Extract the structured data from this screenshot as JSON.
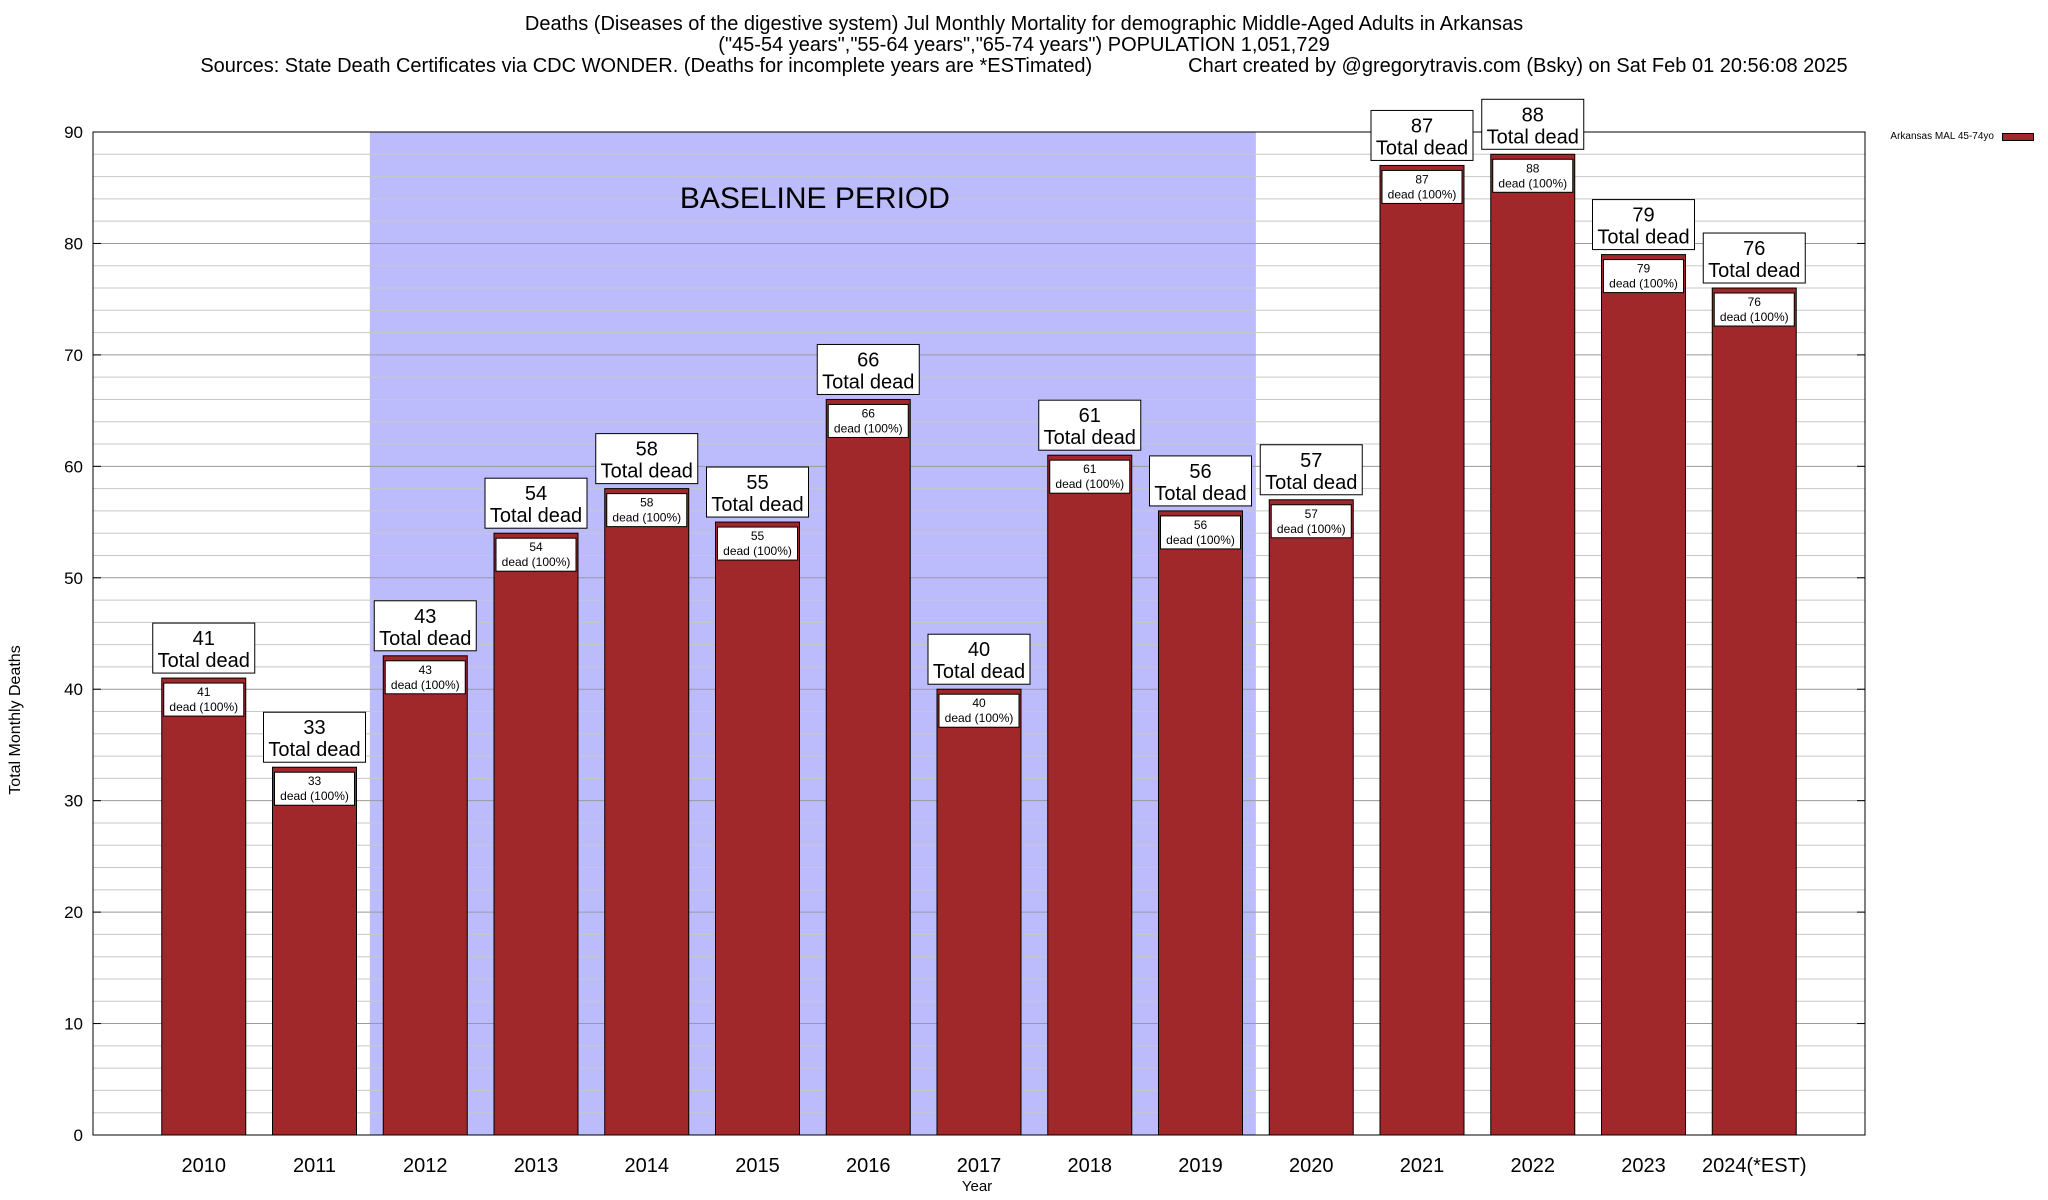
{
  "chart_data": {
    "type": "bar",
    "title": "Deaths (Diseases of the digestive system) Jul Monthly Mortality for demographic Middle-Aged Adults in Arkansas",
    "subtitle": "(\"45-54 years\",\"55-64 years\",\"65-74 years\") POPULATION 1,051,729",
    "source": "Sources: State Death Certificates via CDC WONDER. (Deaths for incomplete years are *ESTimated)",
    "credit": "Chart created by @gregorytravis.com (Bsky) on Sat Feb 01 20:56:08 2025",
    "xlabel": "Year",
    "ylabel": "Total Monthly Deaths",
    "ylim": [
      0,
      90
    ],
    "yticks": [
      0,
      10,
      20,
      30,
      40,
      50,
      60,
      70,
      80,
      90
    ],
    "grid": true,
    "legend_position": "top-right",
    "categories": [
      "2010",
      "2011",
      "2012",
      "2013",
      "2014",
      "2015",
      "2016",
      "2017",
      "2018",
      "2019",
      "2020",
      "2021",
      "2022",
      "2023",
      "2024(*EST)"
    ],
    "series": [
      {
        "name": "Arkansas MAL 45-74yo",
        "color": "#a0282a",
        "values": [
          41,
          33,
          43,
          54,
          58,
          55,
          66,
          40,
          61,
          56,
          57,
          87,
          88,
          79,
          76
        ]
      }
    ],
    "bar_top_label": "Total dead",
    "bar_inner_label": "dead (100%)",
    "annotation": {
      "text": "BASELINE PERIOD",
      "x_range": [
        "2012",
        "2019"
      ],
      "color": "#bcbcfc"
    }
  }
}
